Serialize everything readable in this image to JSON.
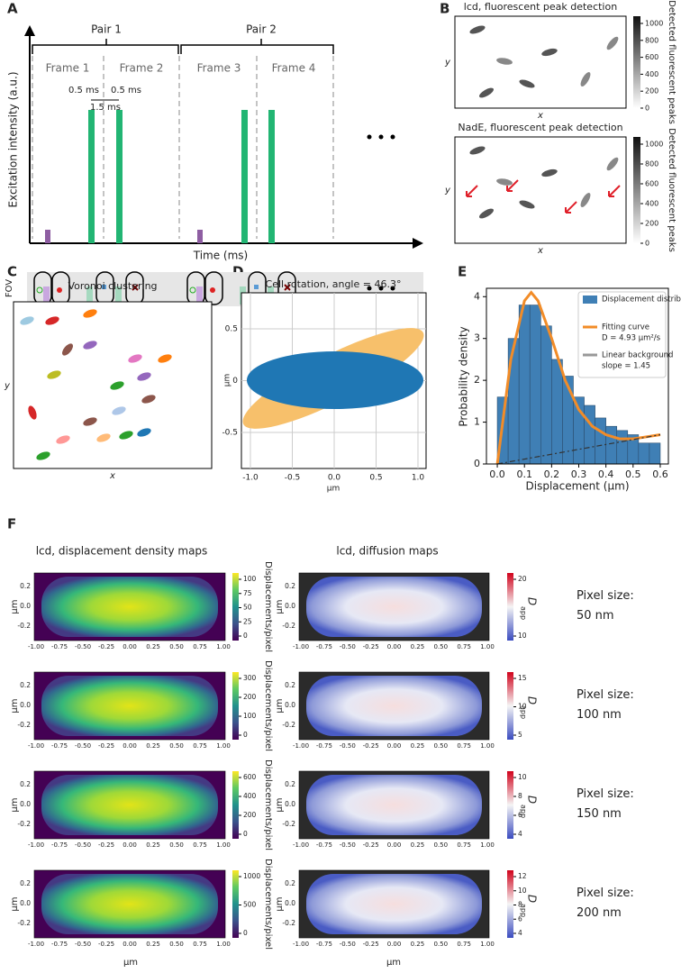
{
  "panel_labels": [
    "A",
    "B",
    "C",
    "D",
    "E",
    "F"
  ],
  "A": {
    "pairs": [
      "Pair 1",
      "Pair 2"
    ],
    "frames": [
      "Frame 1",
      "Frame 2",
      "Frame 3",
      "Frame 4"
    ],
    "gaps": [
      "0.5 ms",
      "0.5 ms"
    ],
    "interval": "1.5 ms",
    "ylabel": "Excitation intensity (a.u.)",
    "xlabel": "Time (ms)",
    "fov": "FOV"
  },
  "B": {
    "titles": [
      "lcd, fluorescent peak detection",
      "NadE, fluorescent peak detection"
    ],
    "cbar_label": "Detected fluorescent peaks",
    "cbar_ticks": [
      0,
      200,
      400,
      600,
      800,
      1000
    ],
    "xlabel": "x",
    "ylabel": "y"
  },
  "C": {
    "title": "Voronoi clustering",
    "xlabel": "x",
    "ylabel": "y"
  },
  "D": {
    "title": "Cell rotation, angle = 46.3°",
    "xlabel": "μm",
    "ylabel": "μm",
    "xticks": [
      "-1.0",
      "-0.5",
      "0.0",
      "0.5",
      "1.0"
    ],
    "yticks": [
      "0.5",
      "0",
      "-0.5"
    ]
  },
  "chart_data": {
    "type": "histogram",
    "xlabel": "Displacement (μm)",
    "ylabel": "Probability density",
    "xlim": [
      -0.04,
      0.63
    ],
    "ylim": [
      0,
      4.2
    ],
    "xticks": [
      {
        "value": 0,
        "label": "0.0"
      },
      {
        "value": 0.1,
        "label": "0.1"
      },
      {
        "value": 0.2,
        "label": "0.2"
      },
      {
        "value": 0.3,
        "label": "0.3"
      },
      {
        "value": 0.4,
        "label": "0.4"
      },
      {
        "value": 0.5,
        "label": "0.5"
      },
      {
        "value": 0.6,
        "label": "0.6"
      }
    ],
    "yticks": [
      0,
      1,
      2,
      3,
      4
    ],
    "series": [
      {
        "name": "Displacement distribution",
        "color": "#3f7fb5",
        "bins": [
          0,
          0.04,
          0.08,
          0.12,
          0.16,
          0.2,
          0.24,
          0.28,
          0.32,
          0.36,
          0.4,
          0.44,
          0.48,
          0.52,
          0.56,
          0.6
        ],
        "values": [
          1.6,
          3.0,
          3.8,
          3.8,
          3.3,
          2.5,
          2.1,
          1.6,
          1.4,
          1.1,
          0.9,
          0.8,
          0.7,
          0.5,
          0.5
        ]
      },
      {
        "name": "Fitting curve",
        "note": "D = 4.93 μm²/s",
        "color": "#f28c28",
        "x": [
          0,
          0.05,
          0.1,
          0.125,
          0.15,
          0.2,
          0.25,
          0.3,
          0.35,
          0.4,
          0.45,
          0.5,
          0.55,
          0.6
        ],
        "values": [
          0,
          2.5,
          3.9,
          4.1,
          3.9,
          3.0,
          2.0,
          1.3,
          0.9,
          0.7,
          0.6,
          0.6,
          0.65,
          0.7
        ]
      },
      {
        "name": "Linear background",
        "note": "slope = 1.45",
        "color": "#999999",
        "x": [
          0,
          0.6
        ],
        "values": [
          0,
          0.7
        ]
      }
    ]
  },
  "F": {
    "titles": [
      "lcd, displacement density maps",
      "lcd, diffusion maps"
    ],
    "ylabel": "μm",
    "xlabel": "μm",
    "yticks": [
      "0.2",
      "0.0",
      "-0.2"
    ],
    "xticks": [
      "-1.00",
      "-0.75",
      "-0.50",
      "-0.25",
      "0.00",
      "0.25",
      "0.50",
      "0.75",
      "1.00"
    ],
    "density_label": "Displacements/pixel",
    "diffusion_label": "D",
    "diffusion_sub": "app",
    "pixel_label": "Pixel size:",
    "rows": [
      {
        "pixel": "50 nm",
        "density_ticks": [
          0,
          25,
          50,
          75,
          100
        ],
        "diffusion_ticks": [
          10,
          20
        ]
      },
      {
        "pixel": "100 nm",
        "density_ticks": [
          0,
          100,
          200,
          300
        ],
        "diffusion_ticks": [
          5,
          10,
          15
        ]
      },
      {
        "pixel": "150 nm",
        "density_ticks": [
          0,
          200,
          400,
          600
        ],
        "diffusion_ticks": [
          4,
          6,
          8,
          10
        ]
      },
      {
        "pixel": "200 nm",
        "density_ticks": [
          0,
          500,
          1000
        ],
        "diffusion_ticks": [
          4,
          6,
          8,
          10,
          12
        ]
      }
    ]
  }
}
